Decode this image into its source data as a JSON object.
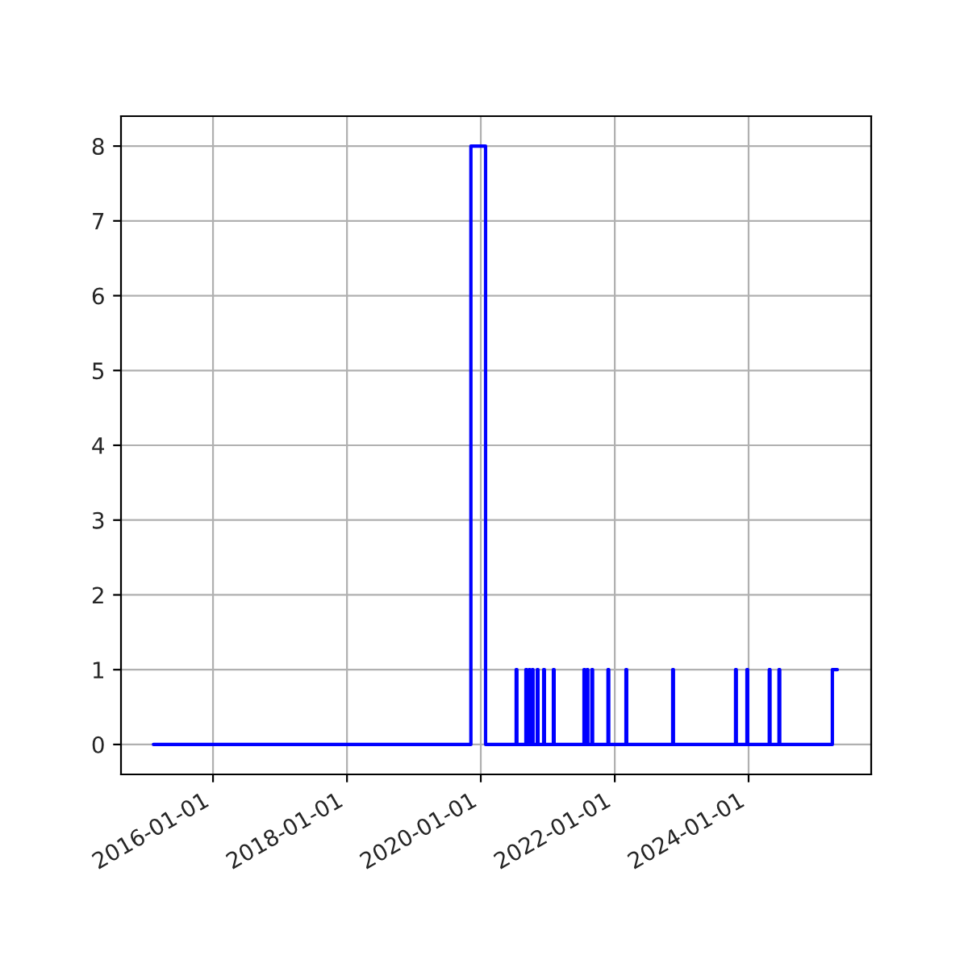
{
  "chart_data": {
    "type": "step",
    "color": "#0000ff",
    "grid": true,
    "x": [
      "2015-02-10",
      "2019-11-08",
      "2020-01-27",
      "2020-07-12",
      "2020-07-16",
      "2020-09-03",
      "2020-09-07",
      "2020-09-21",
      "2020-09-25",
      "2020-10-08",
      "2020-10-12",
      "2020-11-04",
      "2020-11-08",
      "2020-12-09",
      "2020-12-13",
      "2021-01-31",
      "2021-02-04",
      "2021-07-17",
      "2021-07-21",
      "2021-08-03",
      "2021-08-07",
      "2021-08-29",
      "2021-09-02",
      "2021-11-25",
      "2021-11-29",
      "2022-03-03",
      "2022-03-07",
      "2022-11-13",
      "2022-11-17",
      "2023-10-22",
      "2023-10-26",
      "2023-12-23",
      "2023-12-27",
      "2024-04-23",
      "2024-04-27",
      "2024-06-15",
      "2024-06-19",
      "2025-04-02",
      "2025-04-29"
    ],
    "values": [
      0,
      8,
      0,
      1,
      0,
      1,
      0,
      1,
      0,
      1,
      0,
      1,
      0,
      1,
      0,
      1,
      0,
      1,
      0,
      1,
      0,
      1,
      0,
      1,
      0,
      1,
      0,
      1,
      0,
      1,
      0,
      1,
      0,
      1,
      0,
      1,
      0,
      1,
      1
    ],
    "xlim": [
      "2014-08-17",
      "2025-10-31"
    ],
    "xticks": [
      "2016-01-01",
      "2018-01-01",
      "2020-01-01",
      "2022-01-01",
      "2024-01-01"
    ],
    "ylim": [
      -0.4,
      8.4
    ],
    "yticks": [
      0,
      1,
      2,
      3,
      4,
      5,
      6,
      7,
      8
    ]
  }
}
